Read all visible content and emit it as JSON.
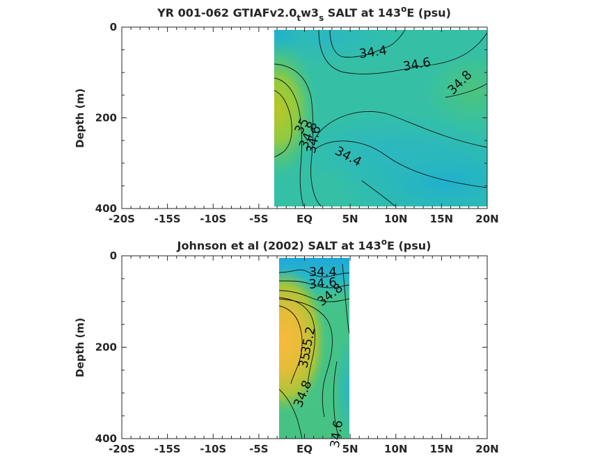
{
  "chart_data": [
    {
      "type": "heatmap",
      "title": "YR 001-062 GTIAFv2.0",
      "title_sub": "t",
      "title_mid": "w3",
      "title_sub2": "s",
      "title_tail": " SALT at 143",
      "title_sup": "o",
      "title_end": "E (psu)",
      "xlabel": "",
      "ylabel": "Depth (m)",
      "x_ticks": [
        -20,
        -15,
        -10,
        -5,
        0,
        5,
        10,
        15,
        20
      ],
      "x_ticklabels": [
        "-20S",
        "-15S",
        "-10S",
        "-5S",
        "EQ",
        "5N",
        "10N",
        "15N",
        "20N"
      ],
      "y_ticks": [
        0,
        200,
        400
      ],
      "y_ticklabels": [
        "0",
        "200",
        "400"
      ],
      "xlim": [
        -20,
        20
      ],
      "ylim": [
        0,
        400
      ],
      "y_reversed": true,
      "data_xlim": [
        -3,
        20
      ],
      "data_ylim": [
        5,
        395
      ],
      "contour_labels": [
        {
          "text": "34.4",
          "x": 7.5,
          "depth": 55,
          "angle": -8
        },
        {
          "text": "34.6",
          "x": 12.3,
          "depth": 82,
          "angle": -10
        },
        {
          "text": "34.8",
          "x": 17.0,
          "depth": 122,
          "angle": -45
        },
        {
          "text": "35",
          "x": -0.3,
          "depth": 218,
          "angle": -62
        },
        {
          "text": "34.8",
          "x": 0.4,
          "depth": 238,
          "angle": -68
        },
        {
          "text": "34.6",
          "x": 1.0,
          "depth": 248,
          "angle": -78
        },
        {
          "text": "34.4",
          "x": 4.8,
          "depth": 285,
          "angle": 28
        }
      ]
    },
    {
      "type": "heatmap",
      "title": "Johnson et al (2002) SALT at 143",
      "title_sup": "o",
      "title_end": "E (psu)",
      "xlabel": "",
      "ylabel": "Depth (m)",
      "x_ticks": [
        -20,
        -15,
        -10,
        -5,
        0,
        5,
        10,
        15,
        20
      ],
      "x_ticklabels": [
        "-20S",
        "-15S",
        "-10S",
        "-5S",
        "EQ",
        "5N",
        "10N",
        "15N",
        "20N"
      ],
      "y_ticks": [
        0,
        200,
        400
      ],
      "y_ticklabels": [
        "0",
        "200",
        "400"
      ],
      "xlim": [
        -20,
        20
      ],
      "ylim": [
        0,
        400
      ],
      "y_reversed": true,
      "data_xlim": [
        -2.7,
        5.1
      ],
      "data_ylim": [
        5,
        400
      ],
      "contour_labels": [
        {
          "text": "34.4",
          "x": 2.0,
          "depth": 35,
          "angle": 0
        },
        {
          "text": "34.6",
          "x": 2.0,
          "depth": 60,
          "angle": -5
        },
        {
          "text": "34.8",
          "x": 2.8,
          "depth": 85,
          "angle": -38
        },
        {
          "text": "35.2",
          "x": 0.4,
          "depth": 185,
          "angle": -78
        },
        {
          "text": "35",
          "x": 0.0,
          "depth": 228,
          "angle": -78
        },
        {
          "text": "34.8",
          "x": -0.2,
          "depth": 302,
          "angle": -68
        },
        {
          "text": "34.6",
          "x": 3.5,
          "depth": 390,
          "angle": -82
        }
      ]
    }
  ]
}
